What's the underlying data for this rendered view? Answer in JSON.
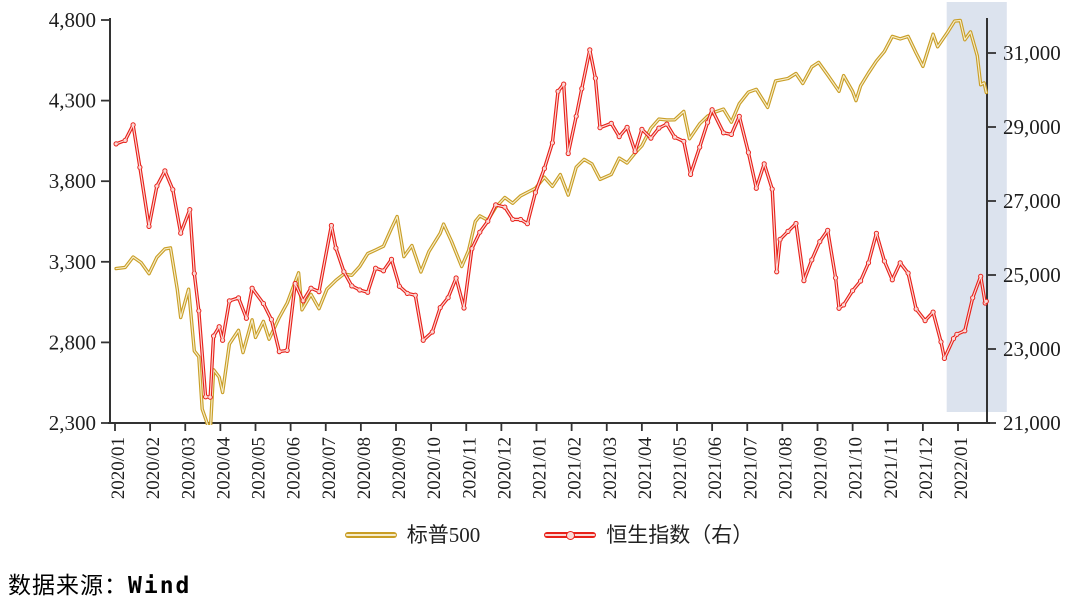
{
  "source": {
    "label": "数据来源：",
    "value": "Wind"
  },
  "chart_data": {
    "type": "line",
    "title": "",
    "xlabel": "",
    "ylabel_left": "",
    "ylabel_right": "",
    "grid": false,
    "legend_position": "bottom",
    "x_ticks": [
      "2020/01",
      "2020/02",
      "2020/03",
      "2020/04",
      "2020/05",
      "2020/06",
      "2020/07",
      "2020/08",
      "2020/09",
      "2020/10",
      "2020/11",
      "2020/12",
      "2021/01",
      "2021/02",
      "2021/03",
      "2021/04",
      "2021/05",
      "2021/06",
      "2021/07",
      "2021/08",
      "2021/09",
      "2021/10",
      "2021/11",
      "2021/12",
      "2022/01"
    ],
    "y_left": {
      "min": 2300,
      "max": 4800,
      "ticks": [
        2300,
        2800,
        3300,
        3800,
        4300,
        4800
      ],
      "tick_labels": [
        "2,300",
        "2,800",
        "3,300",
        "3,800",
        "4,300",
        "4,800"
      ]
    },
    "y_right": {
      "min": 21000,
      "max": 31000,
      "ticks": [
        21000,
        23000,
        25000,
        27000,
        29000,
        31000
      ],
      "tick_labels": [
        "21,000",
        "23,000",
        "25,000",
        "27,000",
        "29,000",
        "31,000"
      ]
    },
    "highlight_band": {
      "start": "2021-12-22",
      "end": "2022-02-13",
      "color": "#DCE3EE"
    },
    "axis_color": "#333333",
    "series": [
      {
        "name": "标普500",
        "axis": "left",
        "color": "#C99E26",
        "core_color": "#F6EDCC",
        "marker": "none",
        "points": [
          [
            "2020-01-02",
            3258
          ],
          [
            "2020-01-10",
            3265
          ],
          [
            "2020-01-17",
            3330
          ],
          [
            "2020-01-24",
            3295
          ],
          [
            "2020-01-31",
            3226
          ],
          [
            "2020-02-07",
            3328
          ],
          [
            "2020-02-14",
            3380
          ],
          [
            "2020-02-19",
            3386
          ],
          [
            "2020-02-25",
            3128
          ],
          [
            "2020-02-28",
            2954
          ],
          [
            "2020-03-04",
            3130
          ],
          [
            "2020-03-09",
            2747
          ],
          [
            "2020-03-13",
            2711
          ],
          [
            "2020-03-16",
            2386
          ],
          [
            "2020-03-20",
            2305
          ],
          [
            "2020-03-23",
            2237
          ],
          [
            "2020-03-26",
            2630
          ],
          [
            "2020-03-31",
            2585
          ],
          [
            "2020-04-03",
            2489
          ],
          [
            "2020-04-09",
            2790
          ],
          [
            "2020-04-17",
            2875
          ],
          [
            "2020-04-21",
            2737
          ],
          [
            "2020-04-29",
            2940
          ],
          [
            "2020-05-01",
            2831
          ],
          [
            "2020-05-08",
            2930
          ],
          [
            "2020-05-13",
            2820
          ],
          [
            "2020-05-22",
            2955
          ],
          [
            "2020-05-29",
            3044
          ],
          [
            "2020-06-08",
            3232
          ],
          [
            "2020-06-11",
            3002
          ],
          [
            "2020-06-19",
            3098
          ],
          [
            "2020-06-26",
            3009
          ],
          [
            "2020-07-02",
            3130
          ],
          [
            "2020-07-10",
            3185
          ],
          [
            "2020-07-17",
            3225
          ],
          [
            "2020-07-24",
            3216
          ],
          [
            "2020-07-31",
            3271
          ],
          [
            "2020-08-07",
            3351
          ],
          [
            "2020-08-14",
            3373
          ],
          [
            "2020-08-21",
            3397
          ],
          [
            "2020-08-28",
            3508
          ],
          [
            "2020-09-02",
            3581
          ],
          [
            "2020-09-08",
            3332
          ],
          [
            "2020-09-15",
            3401
          ],
          [
            "2020-09-23",
            3237
          ],
          [
            "2020-09-30",
            3363
          ],
          [
            "2020-10-09",
            3477
          ],
          [
            "2020-10-12",
            3534
          ],
          [
            "2020-10-19",
            3427
          ],
          [
            "2020-10-28",
            3271
          ],
          [
            "2020-11-03",
            3369
          ],
          [
            "2020-11-09",
            3550
          ],
          [
            "2020-11-13",
            3585
          ],
          [
            "2020-11-20",
            3558
          ],
          [
            "2020-11-27",
            3638
          ],
          [
            "2020-12-04",
            3699
          ],
          [
            "2020-12-11",
            3663
          ],
          [
            "2020-12-18",
            3709
          ],
          [
            "2020-12-31",
            3756
          ],
          [
            "2021-01-08",
            3825
          ],
          [
            "2021-01-15",
            3768
          ],
          [
            "2021-01-22",
            3841
          ],
          [
            "2021-01-29",
            3714
          ],
          [
            "2021-02-05",
            3887
          ],
          [
            "2021-02-12",
            3935
          ],
          [
            "2021-02-19",
            3907
          ],
          [
            "2021-02-26",
            3811
          ],
          [
            "2021-03-05",
            3842
          ],
          [
            "2021-03-12",
            3943
          ],
          [
            "2021-03-19",
            3913
          ],
          [
            "2021-03-26",
            3975
          ],
          [
            "2021-04-01",
            4020
          ],
          [
            "2021-04-09",
            4129
          ],
          [
            "2021-04-16",
            4185
          ],
          [
            "2021-04-23",
            4180
          ],
          [
            "2021-04-30",
            4181
          ],
          [
            "2021-05-07",
            4233
          ],
          [
            "2021-05-12",
            4063
          ],
          [
            "2021-05-21",
            4156
          ],
          [
            "2021-05-28",
            4204
          ],
          [
            "2021-06-04",
            4230
          ],
          [
            "2021-06-11",
            4247
          ],
          [
            "2021-06-18",
            4166
          ],
          [
            "2021-06-25",
            4281
          ],
          [
            "2021-07-02",
            4352
          ],
          [
            "2021-07-09",
            4370
          ],
          [
            "2021-07-19",
            4258
          ],
          [
            "2021-07-26",
            4422
          ],
          [
            "2021-08-06",
            4437
          ],
          [
            "2021-08-13",
            4468
          ],
          [
            "2021-08-19",
            4406
          ],
          [
            "2021-08-27",
            4509
          ],
          [
            "2021-09-02",
            4537
          ],
          [
            "2021-09-10",
            4459
          ],
          [
            "2021-09-20",
            4358
          ],
          [
            "2021-09-24",
            4455
          ],
          [
            "2021-10-01",
            4357
          ],
          [
            "2021-10-04",
            4300
          ],
          [
            "2021-10-08",
            4391
          ],
          [
            "2021-10-15",
            4471
          ],
          [
            "2021-10-22",
            4545
          ],
          [
            "2021-10-29",
            4605
          ],
          [
            "2021-11-05",
            4698
          ],
          [
            "2021-11-12",
            4683
          ],
          [
            "2021-11-19",
            4698
          ],
          [
            "2021-11-26",
            4595
          ],
          [
            "2021-12-01",
            4513
          ],
          [
            "2021-12-10",
            4712
          ],
          [
            "2021-12-14",
            4634
          ],
          [
            "2021-12-23",
            4726
          ],
          [
            "2021-12-29",
            4793
          ],
          [
            "2022-01-03",
            4797
          ],
          [
            "2022-01-07",
            4677
          ],
          [
            "2022-01-12",
            4726
          ],
          [
            "2022-01-18",
            4577
          ],
          [
            "2022-01-21",
            4398
          ],
          [
            "2022-01-24",
            4410
          ],
          [
            "2022-01-26",
            4350
          ]
        ]
      },
      {
        "name": "恒生指数（右）",
        "axis": "right",
        "color": "#E8211A",
        "core_color": "#FADBD8",
        "marker": "circle",
        "points": [
          [
            "2020-01-02",
            28543
          ],
          [
            "2020-01-10",
            28638
          ],
          [
            "2020-01-17",
            29056
          ],
          [
            "2020-01-23",
            27909
          ],
          [
            "2020-01-31",
            26313
          ],
          [
            "2020-02-07",
            27404
          ],
          [
            "2020-02-14",
            27816
          ],
          [
            "2020-02-21",
            27309
          ],
          [
            "2020-02-28",
            26130
          ],
          [
            "2020-03-05",
            26767
          ],
          [
            "2020-03-09",
            25040
          ],
          [
            "2020-03-13",
            24033
          ],
          [
            "2020-03-19",
            21709
          ],
          [
            "2020-03-23",
            21696
          ],
          [
            "2020-03-26",
            23352
          ],
          [
            "2020-03-31",
            23603
          ],
          [
            "2020-04-03",
            23236
          ],
          [
            "2020-04-09",
            24300
          ],
          [
            "2020-04-17",
            24380
          ],
          [
            "2020-04-24",
            23831
          ],
          [
            "2020-04-29",
            24644
          ],
          [
            "2020-05-08",
            24230
          ],
          [
            "2020-05-15",
            23797
          ],
          [
            "2020-05-22",
            22930
          ],
          [
            "2020-05-29",
            22961
          ],
          [
            "2020-06-05",
            24770
          ],
          [
            "2020-06-12",
            24301
          ],
          [
            "2020-06-19",
            24644
          ],
          [
            "2020-06-26",
            24550
          ],
          [
            "2020-07-06",
            26339
          ],
          [
            "2020-07-10",
            25727
          ],
          [
            "2020-07-17",
            25089
          ],
          [
            "2020-07-24",
            24705
          ],
          [
            "2020-07-31",
            24595
          ],
          [
            "2020-08-07",
            24532
          ],
          [
            "2020-08-14",
            25183
          ],
          [
            "2020-08-21",
            25114
          ],
          [
            "2020-08-28",
            25422
          ],
          [
            "2020-09-04",
            24695
          ],
          [
            "2020-09-11",
            24503
          ],
          [
            "2020-09-18",
            24455
          ],
          [
            "2020-09-25",
            23235
          ],
          [
            "2020-10-02",
            23459
          ],
          [
            "2020-10-09",
            24119
          ],
          [
            "2020-10-16",
            24387
          ],
          [
            "2020-10-23",
            24919
          ],
          [
            "2020-10-30",
            24107
          ],
          [
            "2020-11-06",
            25713
          ],
          [
            "2020-11-13",
            26157
          ],
          [
            "2020-11-20",
            26452
          ],
          [
            "2020-11-27",
            26895
          ],
          [
            "2020-12-04",
            26836
          ],
          [
            "2020-12-11",
            26506
          ],
          [
            "2020-12-18",
            26499
          ],
          [
            "2020-12-24",
            26386
          ],
          [
            "2020-12-31",
            27231
          ],
          [
            "2021-01-08",
            27878
          ],
          [
            "2021-01-15",
            28574
          ],
          [
            "2021-01-20",
            29963
          ],
          [
            "2021-01-25",
            30159
          ],
          [
            "2021-01-29",
            28284
          ],
          [
            "2021-02-05",
            29289
          ],
          [
            "2021-02-10",
            30039
          ],
          [
            "2021-02-17",
            31085
          ],
          [
            "2021-02-22",
            30319
          ],
          [
            "2021-02-26",
            28980
          ],
          [
            "2021-03-05",
            29098
          ],
          [
            "2021-03-12",
            28740
          ],
          [
            "2021-03-19",
            28991
          ],
          [
            "2021-03-26",
            28336
          ],
          [
            "2021-04-01",
            28939
          ],
          [
            "2021-04-09",
            28699
          ],
          [
            "2021-04-16",
            28970
          ],
          [
            "2021-04-23",
            29079
          ],
          [
            "2021-04-30",
            28725
          ],
          [
            "2021-05-07",
            28611
          ],
          [
            "2021-05-13",
            27719
          ],
          [
            "2021-05-21",
            28458
          ],
          [
            "2021-05-28",
            29124
          ],
          [
            "2021-06-01",
            29468
          ],
          [
            "2021-06-11",
            28842
          ],
          [
            "2021-06-18",
            28801
          ],
          [
            "2021-06-25",
            29288
          ],
          [
            "2021-07-02",
            28310
          ],
          [
            "2021-07-09",
            27344
          ],
          [
            "2021-07-16",
            28005
          ],
          [
            "2021-07-23",
            27322
          ],
          [
            "2021-07-27",
            25086
          ],
          [
            "2021-07-30",
            25961
          ],
          [
            "2021-08-06",
            26179
          ],
          [
            "2021-08-13",
            26392
          ],
          [
            "2021-08-20",
            24850
          ],
          [
            "2021-08-27",
            25408
          ],
          [
            "2021-09-03",
            25902
          ],
          [
            "2021-09-10",
            26206
          ],
          [
            "2021-09-17",
            24921
          ],
          [
            "2021-09-20",
            24099
          ],
          [
            "2021-09-24",
            24192
          ],
          [
            "2021-10-01",
            24576
          ],
          [
            "2021-10-08",
            24838
          ],
          [
            "2021-10-15",
            25331
          ],
          [
            "2021-10-22",
            26127
          ],
          [
            "2021-10-29",
            25377
          ],
          [
            "2021-11-05",
            24870
          ],
          [
            "2021-11-12",
            25328
          ],
          [
            "2021-11-19",
            25050
          ],
          [
            "2021-11-26",
            24081
          ],
          [
            "2021-12-03",
            23767
          ],
          [
            "2021-12-10",
            23996
          ],
          [
            "2021-12-17",
            23193
          ],
          [
            "2021-12-20",
            22745
          ],
          [
            "2021-12-28",
            23280
          ],
          [
            "2021-12-31",
            23398
          ],
          [
            "2022-01-07",
            23493
          ],
          [
            "2022-01-14",
            24383
          ],
          [
            "2022-01-21",
            24966
          ],
          [
            "2022-01-25",
            24243
          ],
          [
            "2022-01-26",
            24289
          ]
        ]
      }
    ]
  }
}
